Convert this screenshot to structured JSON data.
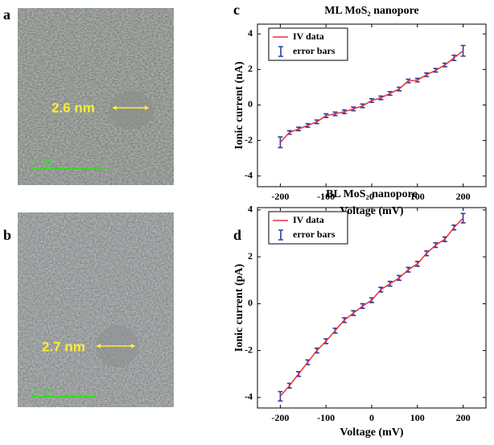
{
  "panels": {
    "a": "a",
    "b": "b",
    "c": "c",
    "d": "d"
  },
  "images": [
    {
      "diameter": "2.6 nm",
      "scale": "5 nm"
    },
    {
      "diameter": "2.7 nm",
      "scale": "5 nm"
    }
  ],
  "chart_data": [
    {
      "type": "line",
      "title": "ML MoS₂ nanopore",
      "x_label": "Voltage (mV)",
      "y_label": "Ionic current (nA)",
      "x": [
        -200,
        -180,
        -160,
        -140,
        -120,
        -100,
        -80,
        -60,
        -40,
        -20,
        0,
        20,
        40,
        60,
        80,
        100,
        120,
        140,
        160,
        180,
        200
      ],
      "series": [
        {
          "name": "IV data",
          "color": "#e8303a",
          "values": [
            -2.1,
            -1.55,
            -1.35,
            -1.15,
            -0.95,
            -0.6,
            -0.5,
            -0.38,
            -0.22,
            -0.05,
            0.25,
            0.4,
            0.65,
            0.9,
            1.35,
            1.4,
            1.7,
            1.95,
            2.25,
            2.65,
            3.05
          ]
        }
      ],
      "errors": {
        "name": "error bars",
        "color": "#2b3f9e",
        "values": [
          0.3,
          0.1,
          0.1,
          0.1,
          0.1,
          0.1,
          0.1,
          0.1,
          0.1,
          0.1,
          0.1,
          0.1,
          0.1,
          0.1,
          0.1,
          0.1,
          0.1,
          0.1,
          0.1,
          0.15,
          0.3
        ]
      },
      "xlim": [
        -250,
        250
      ],
      "xticks": [
        -200,
        -100,
        0,
        100,
        200
      ],
      "ylim": [
        -4.6,
        4.55
      ],
      "yticks": [
        -4,
        -2,
        0,
        2,
        4
      ],
      "legend": "upper left"
    },
    {
      "type": "line",
      "title": "BL MoS₂ nanopore",
      "x_label": "Voltage (mV)",
      "y_label": "Ionic current (pA)",
      "x": [
        -200,
        -180,
        -160,
        -140,
        -120,
        -100,
        -80,
        -60,
        -40,
        -20,
        0,
        20,
        40,
        60,
        80,
        100,
        120,
        140,
        160,
        180,
        200
      ],
      "series": [
        {
          "name": "IV data",
          "color": "#e8303a",
          "values": [
            -3.95,
            -3.5,
            -3.0,
            -2.5,
            -2.0,
            -1.6,
            -1.15,
            -0.7,
            -0.4,
            -0.1,
            0.15,
            0.6,
            0.85,
            1.1,
            1.45,
            1.7,
            2.15,
            2.5,
            2.75,
            3.25,
            3.65
          ]
        }
      ],
      "errors": {
        "name": "error bars",
        "color": "#2b3f9e",
        "values": [
          0.2,
          0.1,
          0.1,
          0.1,
          0.1,
          0.1,
          0.1,
          0.1,
          0.1,
          0.1,
          0.1,
          0.1,
          0.1,
          0.1,
          0.1,
          0.1,
          0.1,
          0.1,
          0.1,
          0.1,
          0.2
        ]
      },
      "xlim": [
        -250,
        250
      ],
      "xticks": [
        -200,
        -100,
        0,
        100,
        200
      ],
      "ylim": [
        -4.45,
        4.1
      ],
      "yticks": [
        -4,
        -2,
        0,
        2,
        4
      ],
      "legend": "upper left"
    }
  ]
}
